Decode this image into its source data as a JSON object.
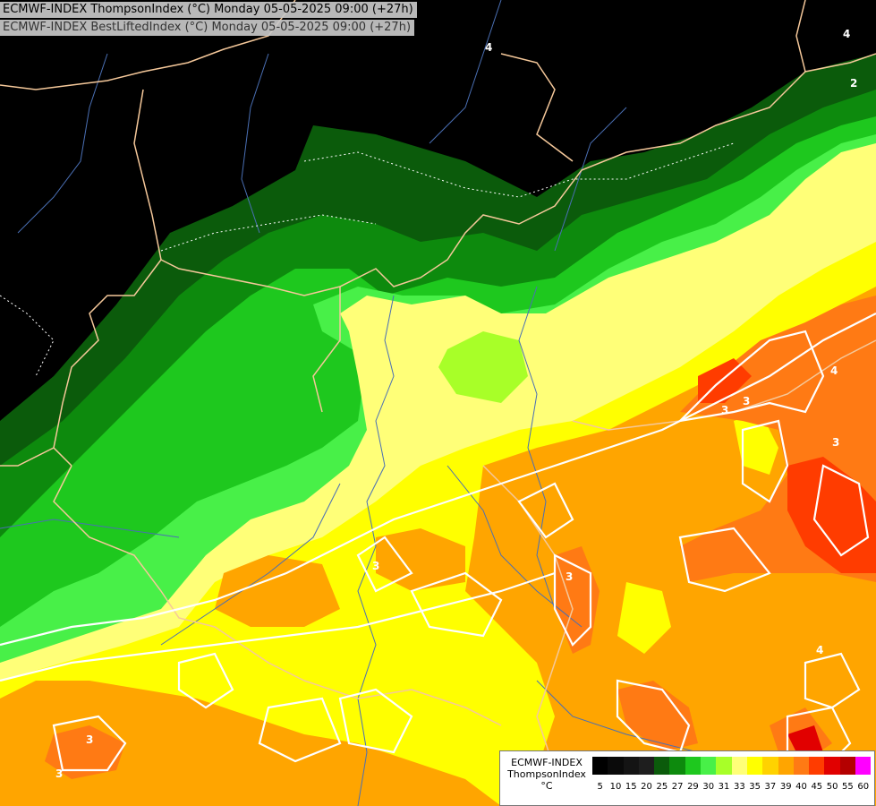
{
  "header": {
    "line1": "ECMWF-INDEX ThompsonIndex (°C) Monday 05-05-2025 09:00 (+27h)",
    "line2": "ECMWF-INDEX BestLiftedIndex (°C) Monday 05-05-2025 09:00 (+27h)"
  },
  "legend": {
    "source": "ECMWF-INDEX",
    "variable": "ThompsonIndex",
    "unit": "°C",
    "ticks": [
      "5",
      "10",
      "15",
      "20",
      "25",
      "27",
      "29",
      "30",
      "31",
      "33",
      "35",
      "37",
      "39",
      "40",
      "45",
      "50",
      "55",
      "60"
    ],
    "colors": [
      "#000000",
      "#0a0a0a",
      "#141414",
      "#1e1e1e",
      "#0b5b0b",
      "#0d8a0d",
      "#1ec81e",
      "#48f048",
      "#a8ff28",
      "#ffff78",
      "#ffff00",
      "#ffd200",
      "#ffa500",
      "#ff7a14",
      "#ff3c00",
      "#e10000",
      "#b40000",
      "#ff00ff",
      "#b400ff",
      "#7800ff",
      "#3c28ff",
      "#0000ff"
    ]
  },
  "contour_labels": [
    "4",
    "2",
    "3",
    "3",
    "4",
    "3",
    "3",
    "4",
    "3",
    "4",
    "3",
    "3"
  ],
  "colors": {
    "background": "#000000",
    "borders": "#f5c89a",
    "rivers": "#4a6fb4",
    "contours": "#ffffff"
  }
}
